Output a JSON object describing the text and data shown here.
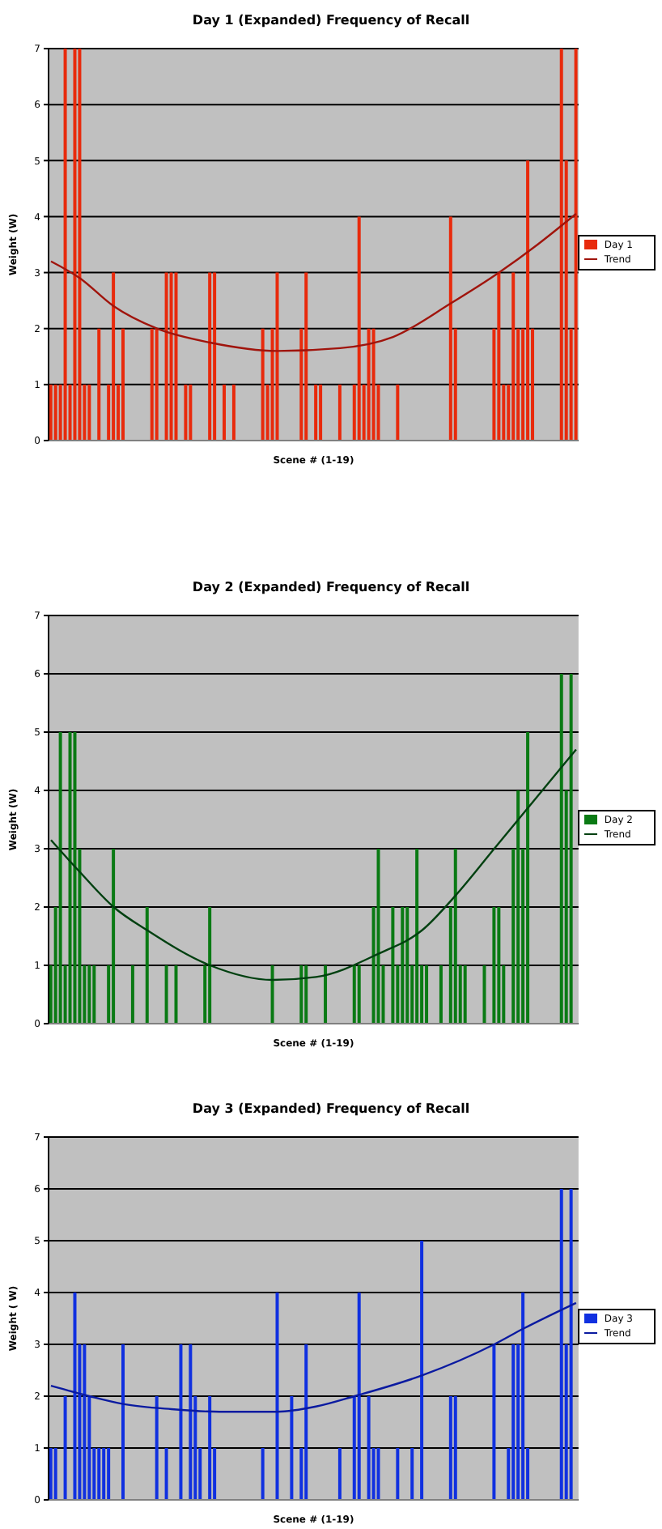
{
  "chart_data": [
    {
      "type": "bar",
      "title": "Day 1 (Expanded) Frequency of Recall",
      "xlabel": "Scene # (1-19)",
      "ylabel": "Weight (W)",
      "ylim": [
        0,
        7
      ],
      "yticks": [
        0,
        1,
        2,
        3,
        4,
        5,
        6,
        7
      ],
      "grid": "y",
      "legend": "right",
      "marker": "none",
      "categories": [
        null,
        null,
        null,
        null,
        null,
        null,
        null,
        null,
        null,
        null,
        null,
        null,
        null,
        null,
        null,
        null,
        null,
        null,
        null,
        null,
        null,
        null,
        null,
        null,
        null,
        null,
        null,
        null,
        null,
        null,
        null,
        null,
        null,
        null,
        null,
        null,
        null,
        null,
        null,
        null,
        null,
        null,
        null,
        null,
        null,
        null,
        null,
        null,
        null,
        null,
        null,
        null,
        null,
        null,
        null,
        null,
        null,
        null,
        null,
        null,
        null,
        null,
        null,
        null,
        null,
        null,
        null,
        null,
        null,
        null,
        null,
        null,
        null,
        null,
        null,
        null,
        null,
        null,
        null,
        null,
        null,
        null,
        null,
        null,
        null,
        null,
        null,
        null,
        null,
        null,
        null,
        null,
        null,
        null,
        null,
        null,
        null,
        null,
        null,
        null,
        null,
        null,
        null,
        null,
        null,
        null,
        null,
        null,
        null,
        null
      ],
      "series": [
        {
          "name": "Day 1",
          "color": "#e82a0c",
          "values": [
            1,
            1,
            1,
            7,
            1,
            7,
            7,
            1,
            1,
            0,
            2,
            0,
            1,
            3,
            1,
            2,
            0,
            0,
            0,
            0,
            0,
            2,
            2,
            0,
            3,
            3,
            3,
            0,
            1,
            1,
            0,
            0,
            0,
            3,
            3,
            0,
            1,
            0,
            1,
            0,
            0,
            0,
            0,
            0,
            2,
            1,
            2,
            3,
            0,
            0,
            0,
            0,
            2,
            3,
            0,
            1,
            1,
            0,
            0,
            0,
            1,
            0,
            0,
            1,
            4,
            1,
            2,
            2,
            1,
            0,
            0,
            0,
            1,
            0,
            0,
            0,
            0,
            0,
            0,
            0,
            0,
            0,
            0,
            4,
            2,
            0,
            0,
            0,
            0,
            0,
            0,
            0,
            2,
            3,
            1,
            1,
            3,
            2,
            2,
            5,
            2,
            0,
            0,
            0,
            0,
            0,
            7,
            5,
            2,
            7
          ]
        },
        {
          "name": "Trend",
          "type": "line",
          "color": "#a0140c",
          "values": [
            3.2,
            null,
            null,
            null,
            null,
            null,
            2.9,
            null,
            null,
            null,
            null,
            null,
            null,
            2.4,
            null,
            null,
            null,
            null,
            null,
            null,
            null,
            null,
            2.0,
            null,
            null,
            null,
            null,
            null,
            null,
            null,
            null,
            null,
            null,
            1.75,
            null,
            null,
            null,
            null,
            null,
            null,
            null,
            null,
            null,
            null,
            null,
            null,
            null,
            1.6,
            null,
            null,
            null,
            null,
            null,
            null,
            null,
            null,
            null,
            null,
            null,
            null,
            1.65,
            null,
            null,
            null,
            null,
            null,
            null,
            null,
            null,
            null,
            null,
            1.85,
            null,
            null,
            null,
            null,
            null,
            null,
            null,
            null,
            null,
            null,
            null,
            2.45,
            null,
            null,
            null,
            null,
            null,
            null,
            null,
            null,
            null,
            3.0,
            null,
            null,
            null,
            null,
            null,
            null,
            null,
            3.5,
            null,
            null,
            null,
            null,
            null,
            null,
            null,
            4.05
          ]
        }
      ]
    },
    {
      "type": "bar",
      "title": "Day 2 (Expanded) Frequency of Recall",
      "xlabel": "Scene # (1-19)",
      "ylabel": "Weight (W)",
      "ylim": [
        0,
        7
      ],
      "yticks": [
        0,
        1,
        2,
        3,
        4,
        5,
        6,
        7
      ],
      "grid": "y",
      "legend": "right",
      "marker": "none",
      "categories": [
        null,
        null,
        null,
        null,
        null,
        null,
        null,
        null,
        null,
        null,
        null,
        null,
        null,
        null,
        null,
        null,
        null,
        null,
        null,
        null,
        null,
        null,
        null,
        null,
        null,
        null,
        null,
        null,
        null,
        null,
        null,
        null,
        null,
        null,
        null,
        null,
        null,
        null,
        null,
        null,
        null,
        null,
        null,
        null,
        null,
        null,
        null,
        null,
        null,
        null,
        null,
        null,
        null,
        null,
        null,
        null,
        null,
        null,
        null,
        null,
        null,
        null,
        null,
        null,
        null,
        null,
        null,
        null,
        null,
        null,
        null,
        null,
        null,
        null,
        null,
        null,
        null,
        null,
        null,
        null,
        null,
        null,
        null,
        null,
        null,
        null,
        null,
        null,
        null,
        null,
        null,
        null,
        null,
        null,
        null,
        null,
        null,
        null,
        null,
        null,
        null,
        null,
        null,
        null,
        null,
        null,
        null,
        null,
        null,
        null
      ],
      "series": [
        {
          "name": "Day 2",
          "color": "#0a7a14",
          "values": [
            1,
            2,
            5,
            1,
            5,
            5,
            3,
            1,
            1,
            1,
            0,
            0,
            1,
            3,
            0,
            0,
            0,
            1,
            0,
            0,
            2,
            0,
            0,
            0,
            1,
            0,
            1,
            0,
            0,
            0,
            0,
            0,
            1,
            2,
            0,
            0,
            0,
            0,
            0,
            0,
            0,
            0,
            0,
            0,
            0,
            0,
            1,
            0,
            0,
            0,
            0,
            0,
            1,
            1,
            0,
            0,
            0,
            1,
            0,
            0,
            0,
            0,
            0,
            1,
            1,
            0,
            0,
            2,
            3,
            1,
            0,
            2,
            1,
            2,
            2,
            1,
            3,
            1,
            1,
            0,
            0,
            1,
            0,
            2,
            3,
            1,
            1,
            0,
            0,
            0,
            1,
            0,
            2,
            2,
            1,
            0,
            3,
            4,
            3,
            5,
            0,
            0,
            0,
            0,
            0,
            0,
            6,
            4,
            6,
            0
          ]
        },
        {
          "name": "Trend",
          "type": "line",
          "color": "#004010",
          "values": [
            3.15,
            null,
            null,
            null,
            null,
            null,
            2.6,
            null,
            null,
            null,
            null,
            null,
            null,
            2.0,
            null,
            null,
            null,
            null,
            null,
            null,
            1.6,
            null,
            null,
            null,
            null,
            null,
            null,
            null,
            null,
            null,
            null,
            null,
            null,
            1.0,
            null,
            null,
            null,
            null,
            null,
            null,
            null,
            null,
            null,
            null,
            null,
            null,
            0.75,
            null,
            null,
            null,
            null,
            null,
            null,
            null,
            null,
            0.8,
            null,
            null,
            null,
            null,
            null,
            null,
            null,
            null,
            null,
            null,
            null,
            null,
            1.2,
            null,
            null,
            null,
            null,
            null,
            null,
            null,
            null,
            1.6,
            null,
            null,
            null,
            null,
            null,
            null,
            2.2,
            null,
            null,
            null,
            null,
            null,
            null,
            null,
            3.0,
            null,
            null,
            null,
            null,
            3.5,
            null,
            null,
            null,
            null,
            null,
            null,
            null,
            null,
            null,
            null,
            null,
            4.7
          ]
        }
      ]
    },
    {
      "type": "bar",
      "title": "Day 3 (Expanded) Frequency of Recall",
      "xlabel": "Scene # (1-19)",
      "ylabel": "Weight ( W)",
      "ylim": [
        0,
        7
      ],
      "yticks": [
        0,
        1,
        2,
        3,
        4,
        5,
        6,
        7
      ],
      "grid": "y",
      "legend": "right",
      "marker": "none",
      "categories": [
        null,
        null,
        null,
        null,
        null,
        null,
        null,
        null,
        null,
        null,
        null,
        null,
        null,
        null,
        null,
        null,
        null,
        null,
        null,
        null,
        null,
        null,
        null,
        null,
        null,
        null,
        null,
        null,
        null,
        null,
        null,
        null,
        null,
        null,
        null,
        null,
        null,
        null,
        null,
        null,
        null,
        null,
        null,
        null,
        null,
        null,
        null,
        null,
        null,
        null,
        null,
        null,
        null,
        null,
        null,
        null,
        null,
        null,
        null,
        null,
        null,
        null,
        null,
        null,
        null,
        null,
        null,
        null,
        null,
        null,
        null,
        null,
        null,
        null,
        null,
        null,
        null,
        null,
        null,
        null,
        null,
        null,
        null,
        null,
        null,
        null,
        null,
        null,
        null,
        null,
        null,
        null,
        null,
        null,
        null,
        null,
        null,
        null,
        null,
        null,
        null,
        null,
        null,
        null,
        null,
        null,
        null,
        null,
        null,
        null
      ],
      "series": [
        {
          "name": "Day 3",
          "color": "#1030e0",
          "values": [
            1,
            1,
            0,
            2,
            0,
            4,
            3,
            3,
            2,
            1,
            1,
            1,
            1,
            0,
            0,
            3,
            0,
            0,
            0,
            0,
            0,
            0,
            2,
            0,
            1,
            0,
            0,
            3,
            0,
            3,
            2,
            1,
            0,
            2,
            1,
            0,
            0,
            0,
            0,
            0,
            0,
            0,
            0,
            0,
            1,
            0,
            0,
            4,
            0,
            0,
            2,
            0,
            1,
            3,
            0,
            0,
            0,
            0,
            0,
            0,
            1,
            0,
            0,
            2,
            4,
            0,
            2,
            1,
            1,
            0,
            0,
            0,
            1,
            0,
            0,
            1,
            0,
            5,
            0,
            0,
            0,
            0,
            0,
            2,
            2,
            0,
            0,
            0,
            0,
            0,
            0,
            0,
            3,
            0,
            0,
            1,
            3,
            3,
            4,
            1,
            0,
            0,
            0,
            0,
            0,
            0,
            6,
            3,
            6,
            0
          ]
        },
        {
          "name": "Trend",
          "type": "line",
          "color": "#0a1aa0",
          "values": [
            2.2,
            null,
            null,
            null,
            null,
            null,
            null,
            null,
            2.0,
            null,
            null,
            null,
            null,
            null,
            null,
            1.85,
            null,
            null,
            null,
            null,
            null,
            null,
            null,
            null,
            null,
            1.75,
            null,
            null,
            null,
            null,
            null,
            null,
            null,
            null,
            null,
            1.7,
            null,
            null,
            null,
            null,
            null,
            null,
            null,
            null,
            null,
            null,
            null,
            1.7,
            null,
            null,
            null,
            null,
            null,
            null,
            null,
            1.8,
            null,
            null,
            null,
            null,
            null,
            null,
            null,
            2.0,
            null,
            null,
            null,
            null,
            null,
            null,
            null,
            null,
            null,
            null,
            null,
            null,
            null,
            2.4,
            null,
            null,
            null,
            null,
            null,
            null,
            null,
            null,
            null,
            null,
            null,
            null,
            null,
            null,
            3.0,
            null,
            null,
            null,
            null,
            null,
            3.3,
            null,
            null,
            null,
            null,
            null,
            null,
            null,
            null,
            null,
            null,
            3.8
          ]
        }
      ]
    }
  ]
}
